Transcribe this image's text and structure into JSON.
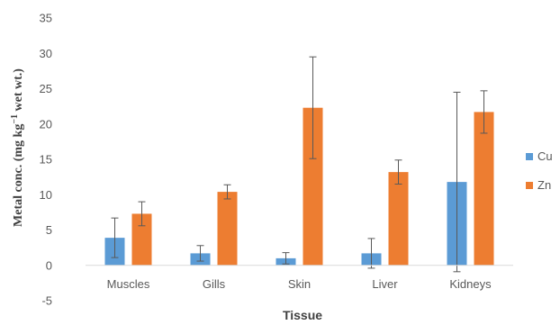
{
  "chart_data": {
    "type": "bar",
    "title": "",
    "xlabel": "Tissue",
    "ylabel": {
      "prefix": "Metal conc. (mg kg",
      "superscript": "−1",
      "suffix": " wet wt.)"
    },
    "ylim": [
      -5,
      35
    ],
    "yticks": [
      -5,
      0,
      5,
      10,
      15,
      20,
      25,
      30,
      35
    ],
    "grid": false,
    "legend_position": "right",
    "categories": [
      "Muscles",
      "Gills",
      "Skin",
      "Liver",
      "Kidneys"
    ],
    "series": [
      {
        "name": "Cu",
        "color": "#5B9BD5",
        "values": [
          3.9,
          1.7,
          1.0,
          1.7,
          11.8
        ],
        "errors": [
          2.8,
          1.1,
          0.8,
          2.1,
          12.7
        ]
      },
      {
        "name": "Zn",
        "color": "#ED7D31",
        "values": [
          7.3,
          10.4,
          22.3,
          13.2,
          21.7
        ],
        "errors": [
          1.7,
          1.0,
          7.2,
          1.7,
          3.0
        ]
      }
    ]
  }
}
